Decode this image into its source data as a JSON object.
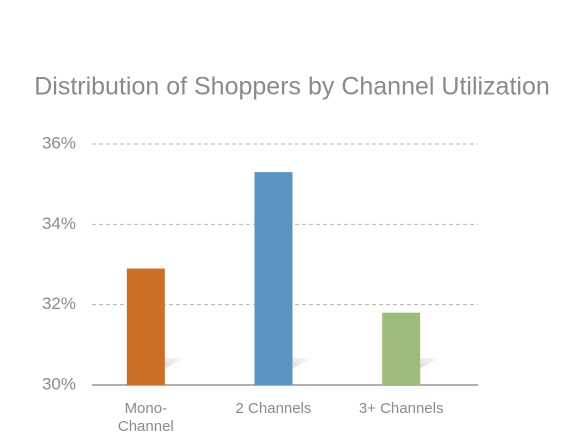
{
  "chart_data": {
    "type": "bar",
    "title": "Distribution of Shoppers by Channel Utilization",
    "categories": [
      "Mono-Channel",
      "2 Channels",
      "3+ Channels"
    ],
    "values": [
      32.9,
      35.3,
      31.8
    ],
    "colors": [
      "#cc7029",
      "#5b93c4",
      "#9dbb7a"
    ],
    "ylim": [
      30,
      36
    ],
    "yticks": [
      {
        "value": 30,
        "label": "30%"
      },
      {
        "value": 32,
        "label": "32%"
      },
      {
        "value": 34,
        "label": "34%"
      },
      {
        "value": 36,
        "label": "36%"
      }
    ],
    "grid": true
  }
}
